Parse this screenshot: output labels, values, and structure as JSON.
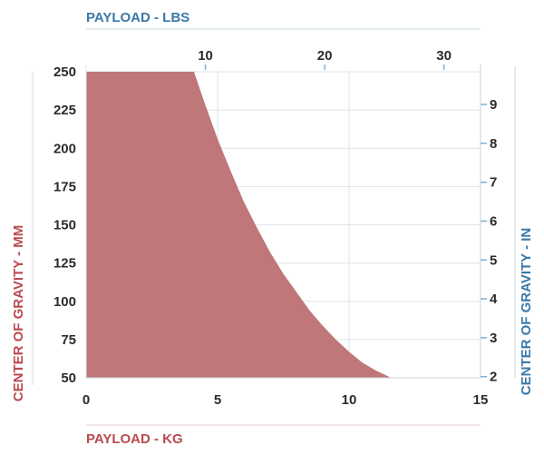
{
  "chart_data": {
    "type": "area",
    "title": "",
    "axes": {
      "bottom": {
        "label": "PAYLOAD - KG",
        "range": [
          0,
          15
        ],
        "ticks": [
          0,
          5,
          10,
          15
        ],
        "color": "#b94a4f"
      },
      "top": {
        "label": "PAYLOAD - LBS",
        "range": [
          0,
          33.07
        ],
        "ticks": [
          10,
          20,
          30
        ],
        "color": "#3a78a8"
      },
      "left": {
        "label": "CENTER OF GRAVITY - MM",
        "range": [
          50,
          250
        ],
        "ticks": [
          50,
          75,
          100,
          125,
          150,
          175,
          200,
          225,
          250
        ],
        "color": "#b94a4f"
      },
      "right": {
        "label": "CENTER OF GRAVITY - IN",
        "range": [
          1.97,
          9.84
        ],
        "ticks": [
          2,
          3,
          4,
          5,
          6,
          7,
          8,
          9
        ],
        "color": "#3a78a8"
      }
    },
    "grid": true,
    "fill_color": "#bf7779",
    "series": [
      {
        "x": [
          0,
          4.1,
          4.5,
          5.0,
          5.5,
          6.0,
          6.5,
          7.0,
          7.5,
          8.0,
          8.5,
          9.0,
          9.5,
          10.0,
          10.5,
          11.0,
          11.6
        ],
        "y": [
          250,
          250,
          230,
          206,
          185,
          165,
          148,
          132,
          118,
          106,
          94,
          84,
          75,
          67,
          60,
          55,
          50
        ]
      }
    ]
  }
}
